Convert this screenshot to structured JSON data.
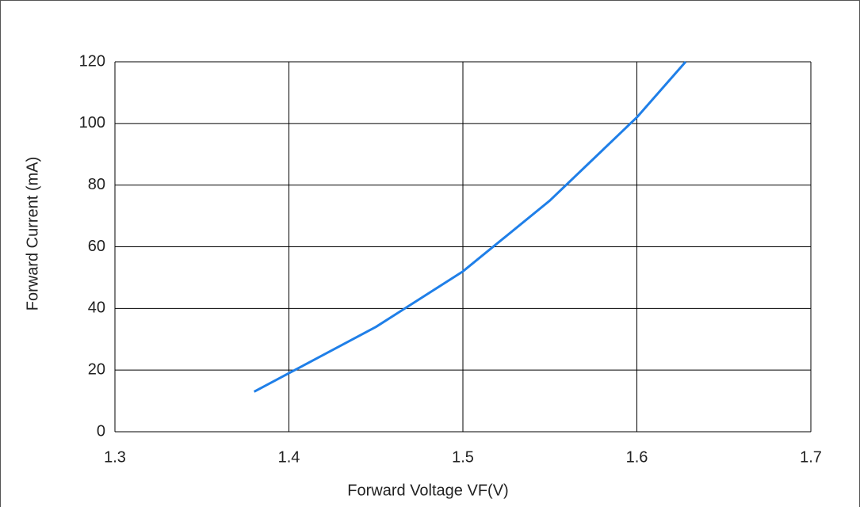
{
  "chart_data": {
    "type": "line",
    "x_label": "Forward Voltage  VF(V)",
    "y_label": "Forward Current (mA)",
    "x": [
      1.38,
      1.4,
      1.45,
      1.5,
      1.55,
      1.6,
      1.628
    ],
    "values": [
      13,
      19,
      34,
      52,
      75,
      102,
      120
    ],
    "color": "#1f7fe8",
    "xlim": [
      1.3,
      1.7
    ],
    "xticks": [
      1.3,
      1.4,
      1.5,
      1.6,
      1.7
    ],
    "ylim": [
      0,
      120
    ],
    "yticks": [
      0,
      20,
      40,
      60,
      80,
      100,
      120
    ],
    "grid": true
  }
}
